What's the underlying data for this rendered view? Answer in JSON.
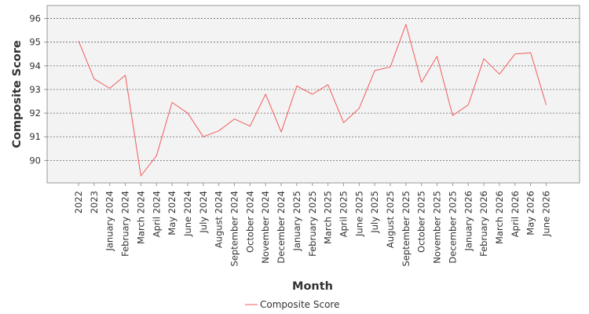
{
  "chart_data": {
    "type": "line",
    "xlabel": "Month",
    "ylabel": "Composite Score",
    "categories": [
      "2022",
      "2023",
      "January 2024",
      "February 2024",
      "March 2024",
      "April 2024",
      "May 2024",
      "June 2024",
      "July 2024",
      "August 2024",
      "September 2024",
      "October 2024",
      "November 2024",
      "December 2024",
      "January 2025",
      "February 2025",
      "March 2025",
      "April 2025",
      "June 2025",
      "July 2025",
      "August 2025",
      "September 2025",
      "October 2025",
      "November 2025",
      "December 2025",
      "January 2026",
      "February 2026",
      "March 2026",
      "April 2026",
      "May 2026",
      "June 2026"
    ],
    "series": [
      {
        "name": "Composite Score",
        "color": "#f25c5c",
        "values": [
          95.05,
          93.45,
          93.05,
          93.6,
          89.35,
          90.2,
          92.45,
          92.0,
          91.0,
          91.25,
          91.75,
          91.45,
          92.8,
          91.2,
          93.15,
          92.8,
          93.2,
          91.6,
          92.2,
          93.8,
          93.95,
          95.75,
          93.3,
          94.4,
          91.9,
          92.35,
          94.3,
          93.65,
          94.5,
          94.55,
          92.35
        ]
      }
    ],
    "yticks": [
      90,
      91,
      92,
      93,
      94,
      95,
      96
    ],
    "ylim": [
      89.05,
      96.55
    ],
    "grid": true,
    "legend_position": "bottom-center",
    "plot_background": "#f3f3f3"
  }
}
